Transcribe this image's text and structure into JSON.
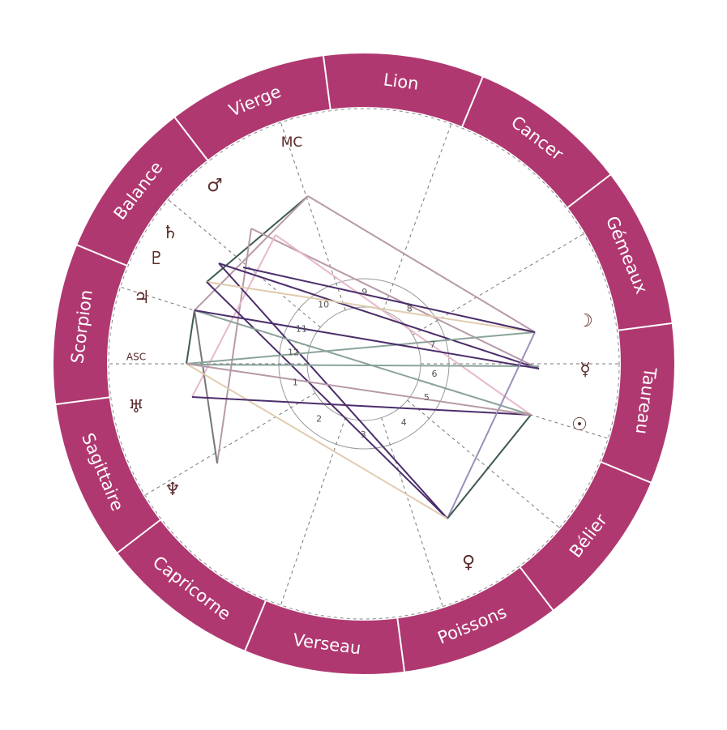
{
  "signs": [
    "Lion",
    "Cancer",
    "Gémeaux",
    "Taureau",
    "Bélier",
    "Poissons",
    "Verseau",
    "Capricorne",
    "Sagittaire",
    "Scorpion",
    "Balance",
    "Vierge"
  ],
  "angles": {
    "mc": "MC",
    "asc": "ASC"
  },
  "planets": [
    "☽",
    "☿",
    "☉",
    "♀",
    "♆",
    "♅",
    "♃",
    "♇",
    "♄",
    "♂"
  ],
  "houses": [
    "1",
    "2",
    "3",
    "4",
    "5",
    "6",
    "7",
    "8",
    "9",
    "10",
    "11",
    "12"
  ]
}
